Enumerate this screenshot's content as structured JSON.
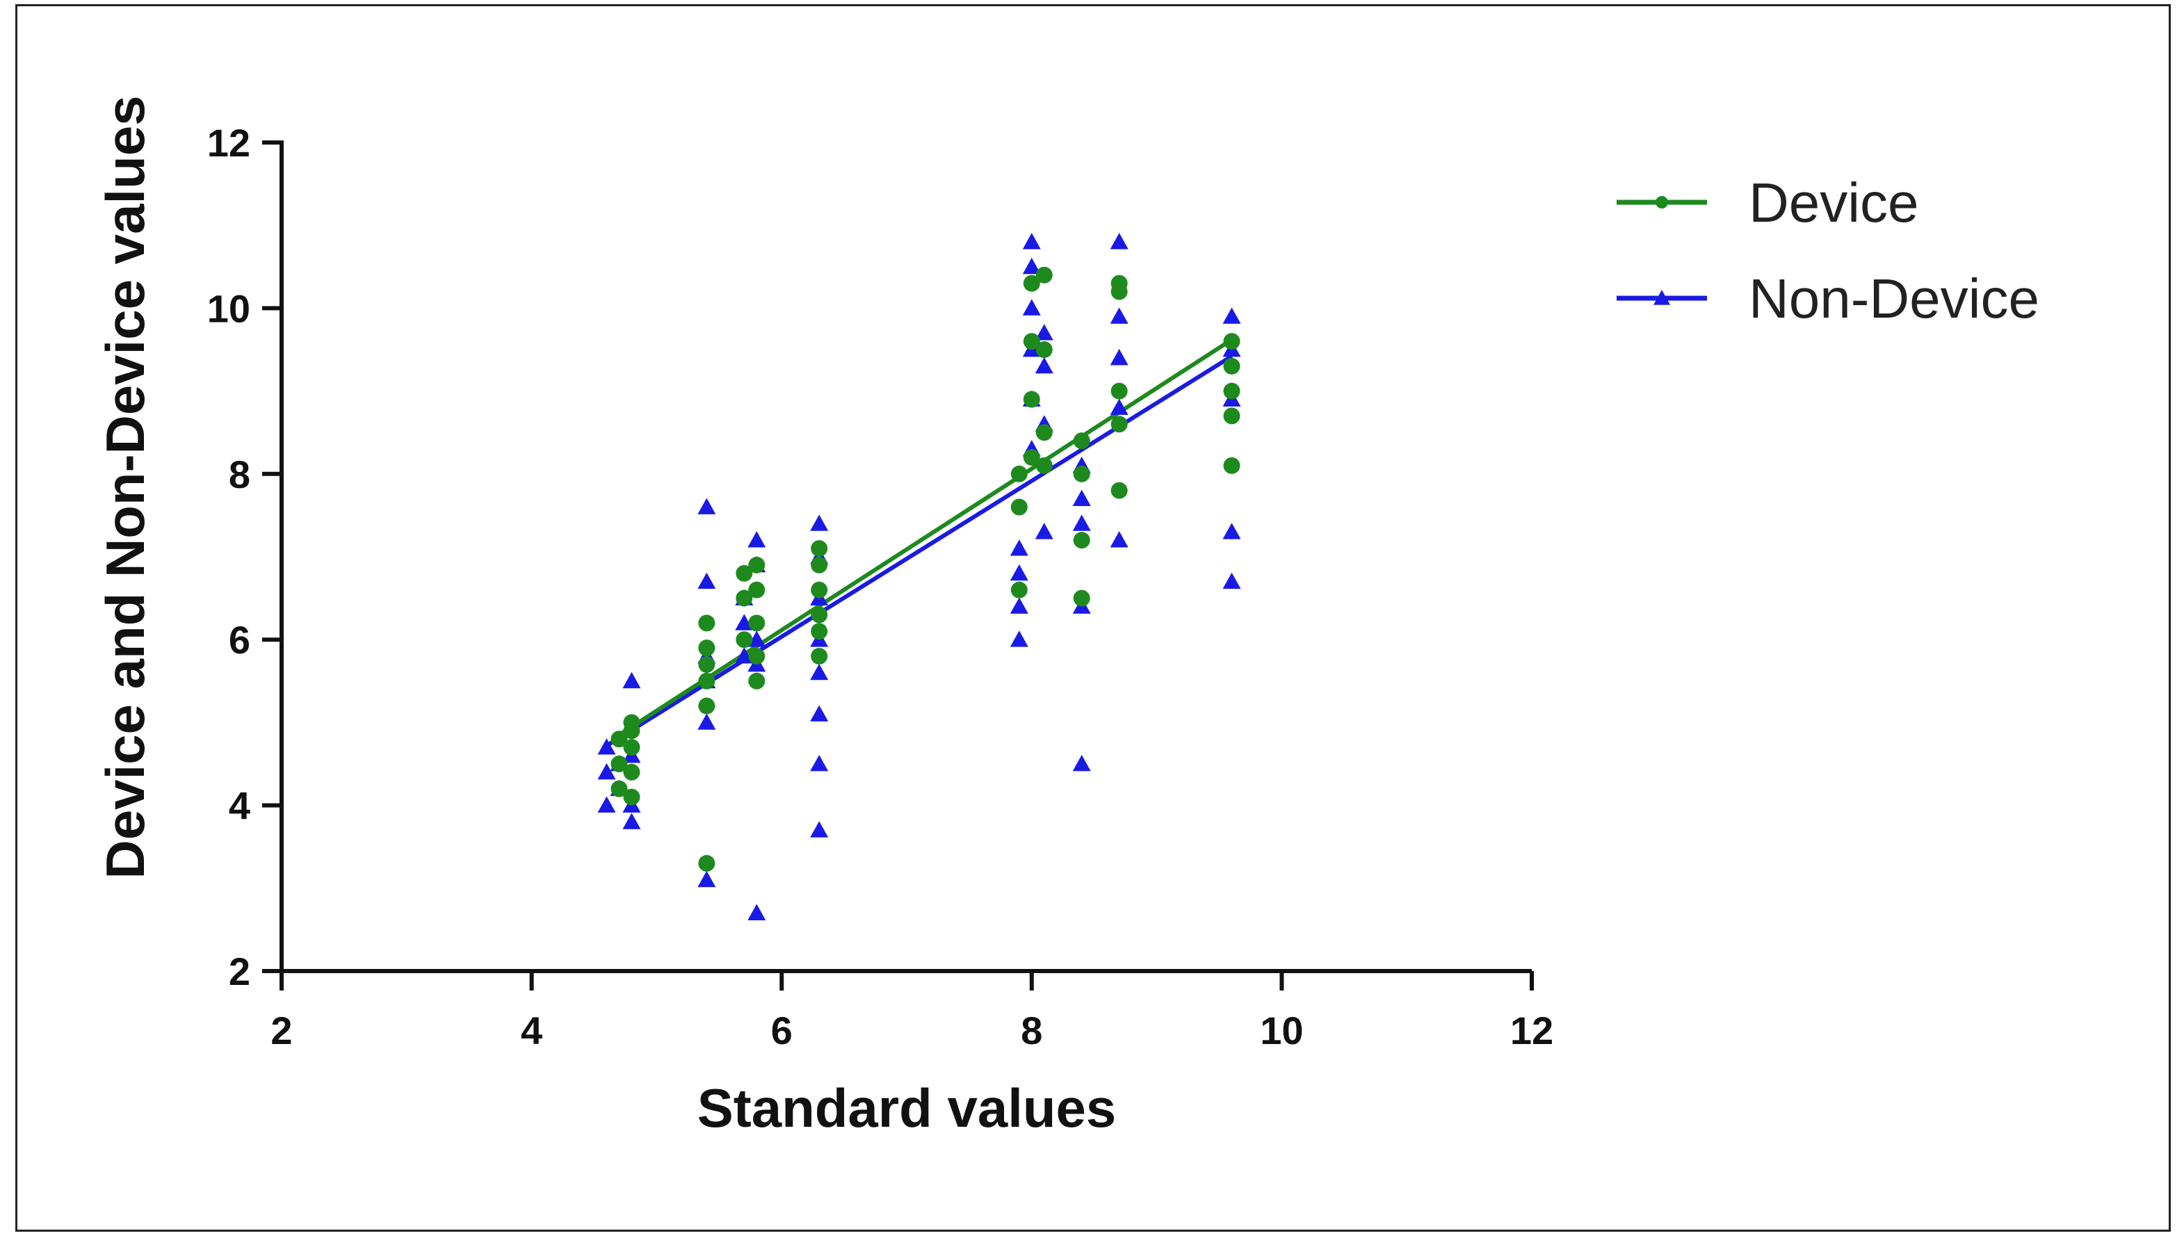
{
  "chart_data": {
    "type": "scatter",
    "title": "",
    "xlabel": "Standard values",
    "ylabel": "Device and Non-Device values",
    "xlim": [
      2,
      12
    ],
    "ylim": [
      2,
      12
    ],
    "xticks": [
      "2",
      "4",
      "6",
      "8",
      "10",
      "12"
    ],
    "yticks": [
      "2",
      "4",
      "6",
      "8",
      "10",
      "12"
    ],
    "grid": false,
    "legend_position": "top-right",
    "series": [
      {
        "name": "Device",
        "color": "#1e8a1e",
        "marker": "circle",
        "points": [
          [
            4.7,
            4.2
          ],
          [
            4.7,
            4.8
          ],
          [
            4.7,
            4.5
          ],
          [
            4.8,
            4.7
          ],
          [
            4.8,
            5.0
          ],
          [
            4.8,
            4.1
          ],
          [
            4.8,
            4.4
          ],
          [
            4.8,
            4.9
          ],
          [
            5.4,
            3.3
          ],
          [
            5.4,
            5.2
          ],
          [
            5.4,
            5.5
          ],
          [
            5.4,
            5.9
          ],
          [
            5.4,
            6.2
          ],
          [
            5.4,
            5.7
          ],
          [
            5.7,
            6.8
          ],
          [
            5.7,
            6.5
          ],
          [
            5.7,
            6.0
          ],
          [
            5.8,
            6.9
          ],
          [
            5.8,
            5.5
          ],
          [
            5.8,
            5.8
          ],
          [
            5.8,
            6.2
          ],
          [
            5.8,
            6.6
          ],
          [
            6.3,
            5.8
          ],
          [
            6.3,
            6.3
          ],
          [
            6.3,
            6.6
          ],
          [
            6.3,
            6.9
          ],
          [
            6.3,
            7.1
          ],
          [
            6.3,
            6.1
          ],
          [
            7.9,
            6.6
          ],
          [
            7.9,
            7.6
          ],
          [
            7.9,
            8.0
          ],
          [
            8.0,
            8.2
          ],
          [
            8.0,
            8.9
          ],
          [
            8.0,
            9.6
          ],
          [
            8.0,
            10.3
          ],
          [
            8.1,
            10.4
          ],
          [
            8.1,
            9.5
          ],
          [
            8.1,
            8.5
          ],
          [
            8.1,
            8.1
          ],
          [
            8.4,
            7.2
          ],
          [
            8.4,
            6.5
          ],
          [
            8.4,
            8.4
          ],
          [
            8.4,
            8.0
          ],
          [
            8.7,
            7.8
          ],
          [
            8.7,
            8.6
          ],
          [
            8.7,
            9.0
          ],
          [
            8.7,
            10.2
          ],
          [
            8.7,
            10.3
          ],
          [
            9.6,
            8.1
          ],
          [
            9.6,
            8.7
          ],
          [
            9.6,
            9.0
          ],
          [
            9.6,
            9.3
          ],
          [
            9.6,
            9.6
          ]
        ],
        "fit": [
          [
            4.7,
            4.85
          ],
          [
            9.6,
            9.62
          ]
        ]
      },
      {
        "name": "Non-Device",
        "color": "#1a1ae6",
        "marker": "triangle",
        "points": [
          [
            4.6,
            4.0
          ],
          [
            4.6,
            4.4
          ],
          [
            4.6,
            4.7
          ],
          [
            4.7,
            4.2
          ],
          [
            4.7,
            4.5
          ],
          [
            4.8,
            3.8
          ],
          [
            4.8,
            4.0
          ],
          [
            4.8,
            5.5
          ],
          [
            4.8,
            4.6
          ],
          [
            5.4,
            3.1
          ],
          [
            5.4,
            5.0
          ],
          [
            5.4,
            5.5
          ],
          [
            5.4,
            5.8
          ],
          [
            5.4,
            6.7
          ],
          [
            5.4,
            7.6
          ],
          [
            5.7,
            5.8
          ],
          [
            5.7,
            6.2
          ],
          [
            5.7,
            6.5
          ],
          [
            5.8,
            2.7
          ],
          [
            5.8,
            5.7
          ],
          [
            5.8,
            6.0
          ],
          [
            5.8,
            6.9
          ],
          [
            5.8,
            7.2
          ],
          [
            6.3,
            3.7
          ],
          [
            6.3,
            4.5
          ],
          [
            6.3,
            5.1
          ],
          [
            6.3,
            5.6
          ],
          [
            6.3,
            6.0
          ],
          [
            6.3,
            6.5
          ],
          [
            6.3,
            7.0
          ],
          [
            6.3,
            7.4
          ],
          [
            7.9,
            6.0
          ],
          [
            7.9,
            6.4
          ],
          [
            7.9,
            6.8
          ],
          [
            7.9,
            7.1
          ],
          [
            8.0,
            8.3
          ],
          [
            8.0,
            8.9
          ],
          [
            8.0,
            9.5
          ],
          [
            8.0,
            10.0
          ],
          [
            8.0,
            10.5
          ],
          [
            8.0,
            10.8
          ],
          [
            8.1,
            7.3
          ],
          [
            8.1,
            8.6
          ],
          [
            8.1,
            9.3
          ],
          [
            8.1,
            9.7
          ],
          [
            8.4,
            4.5
          ],
          [
            8.4,
            6.4
          ],
          [
            8.4,
            7.4
          ],
          [
            8.4,
            7.7
          ],
          [
            8.4,
            8.1
          ],
          [
            8.7,
            7.2
          ],
          [
            8.7,
            8.8
          ],
          [
            8.7,
            9.4
          ],
          [
            8.7,
            9.9
          ],
          [
            8.7,
            10.8
          ],
          [
            9.6,
            6.7
          ],
          [
            9.6,
            7.3
          ],
          [
            9.6,
            8.9
          ],
          [
            9.6,
            9.5
          ],
          [
            9.6,
            9.9
          ]
        ],
        "fit": [
          [
            4.6,
            4.72
          ],
          [
            9.6,
            9.42
          ]
        ]
      }
    ]
  }
}
